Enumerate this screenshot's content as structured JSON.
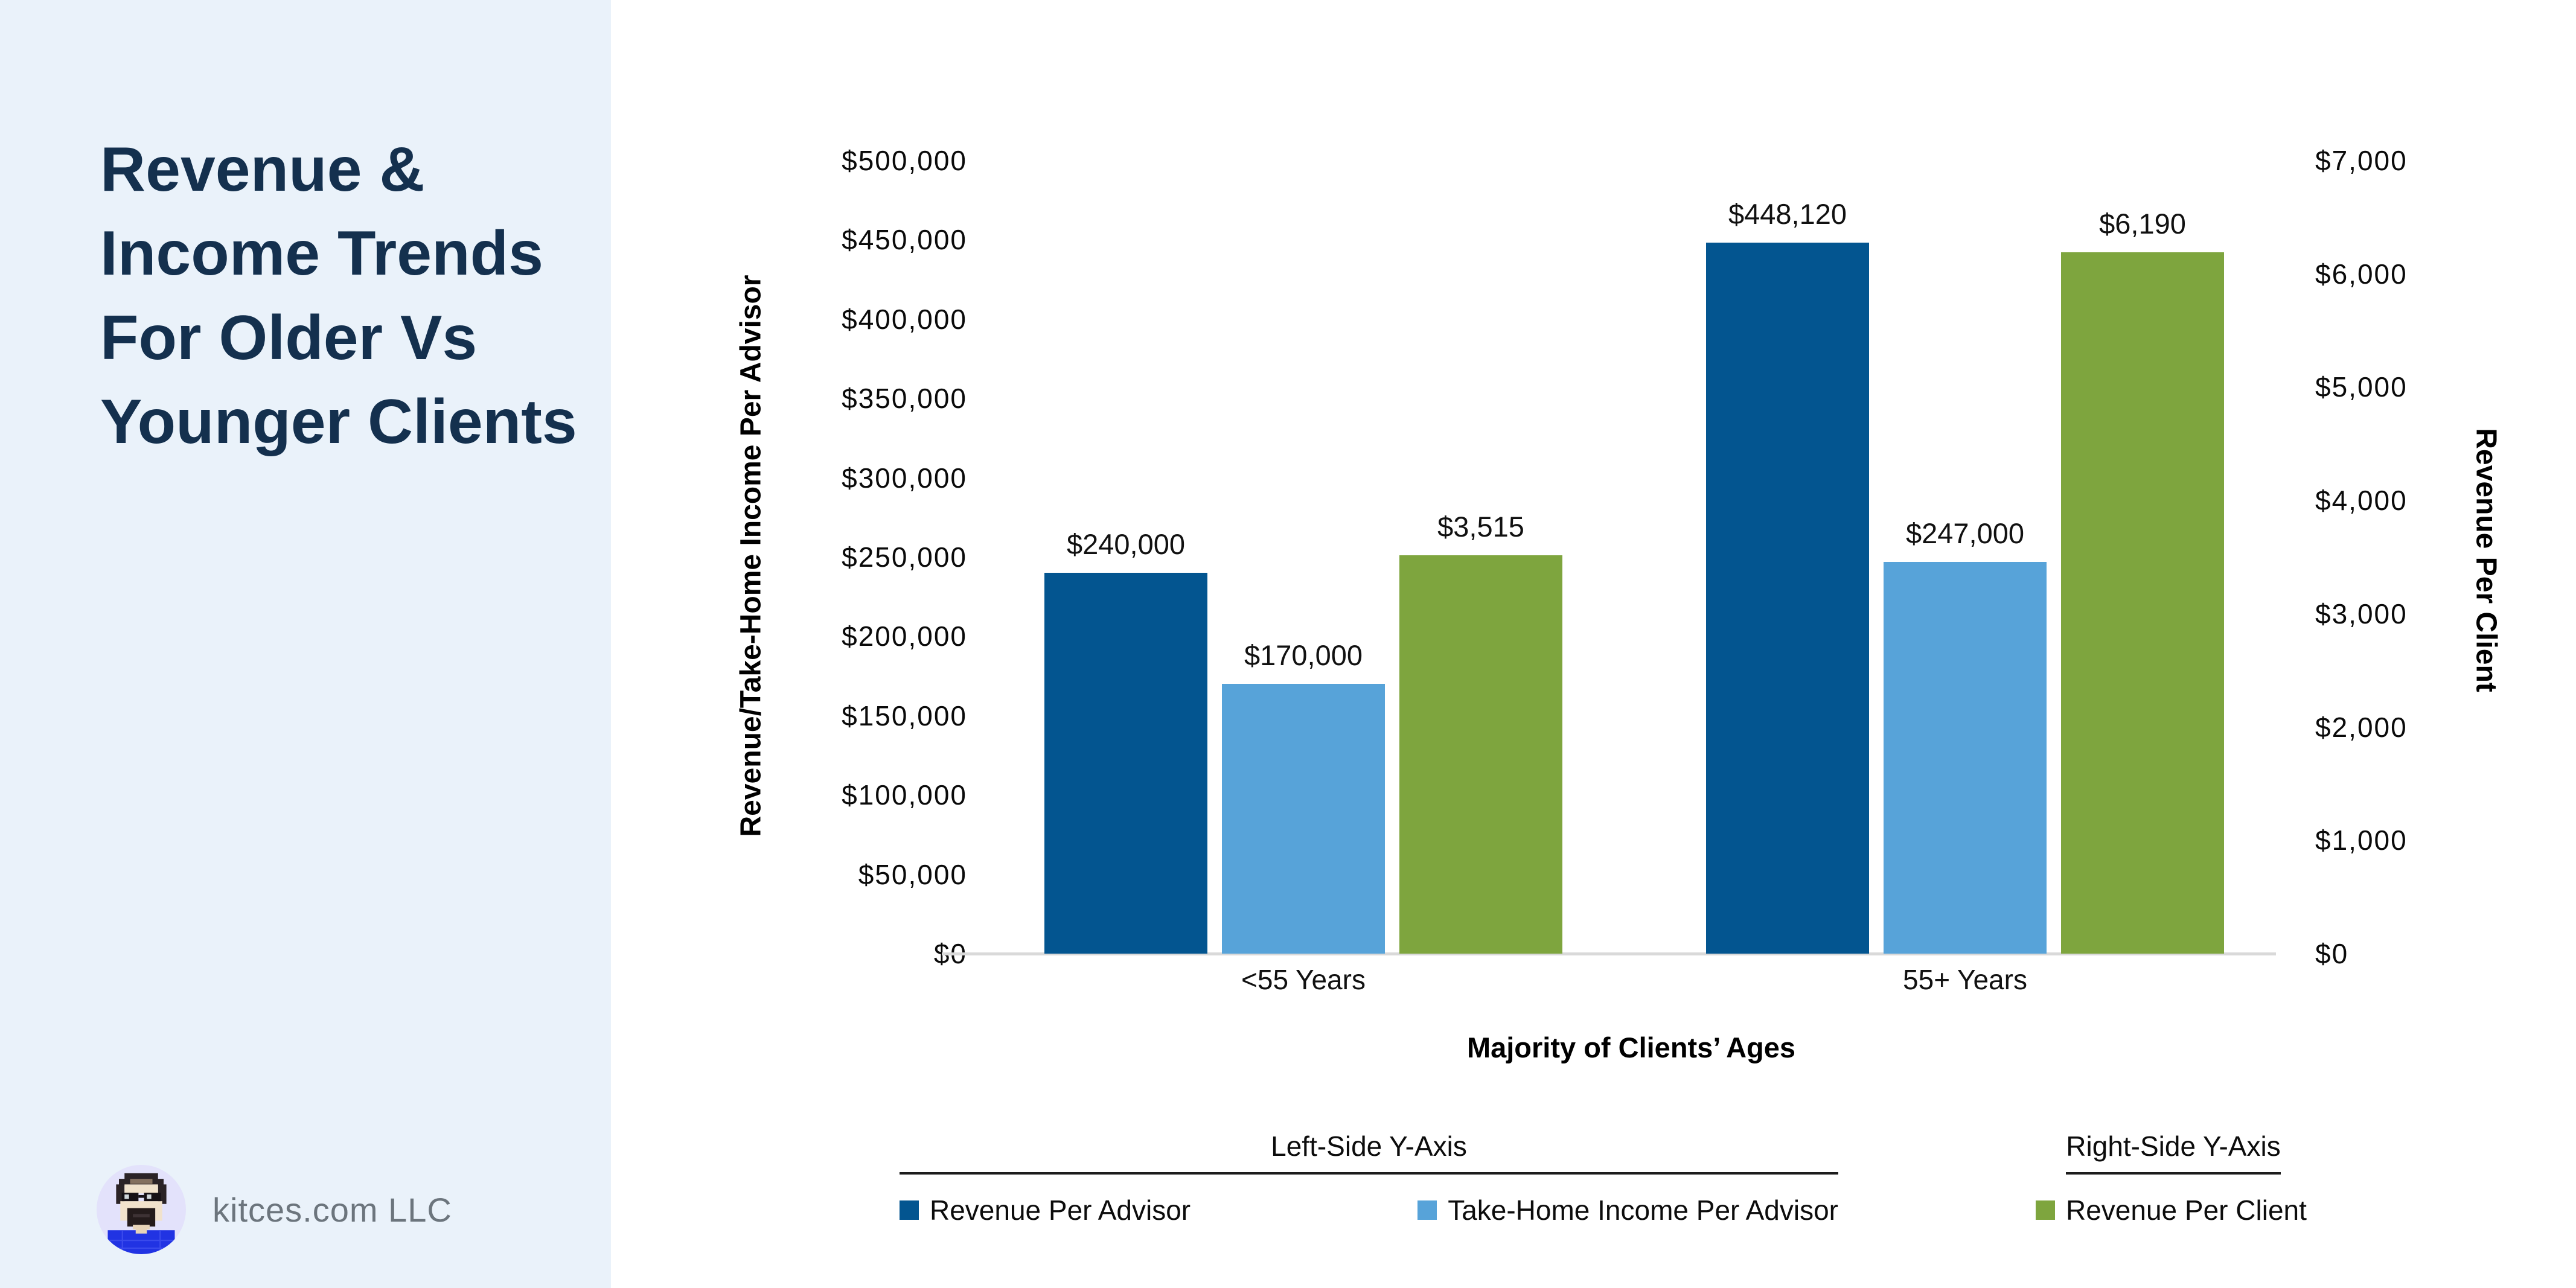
{
  "page": {
    "background": "#ffffff",
    "sidebar_background": "#eaf2fa",
    "title_color": "#14304e",
    "baseline_color": "#d9d9d9"
  },
  "sidebar": {
    "title": "Revenue & Income Trends For Older Vs Younger Clients",
    "brand": "kitces.com LLC",
    "avatar_icon": "kitces-avatar-icon"
  },
  "chart_data": {
    "type": "bar",
    "grid": false,
    "categories": [
      "<55 Years",
      "55+ Years"
    ],
    "series": [
      {
        "name": "Revenue Per Advisor",
        "axis": "left",
        "color": "#035590",
        "values": [
          240000,
          448120
        ],
        "value_labels": [
          "$240,000",
          "$448,120"
        ]
      },
      {
        "name": "Take-Home Income Per Advisor",
        "axis": "left",
        "color": "#57a3d9",
        "values": [
          170000,
          247000
        ],
        "value_labels": [
          "$170,000",
          "$247,000"
        ]
      },
      {
        "name": "Revenue Per Client",
        "axis": "right",
        "color": "#7ea53e",
        "values": [
          3515,
          6190
        ],
        "value_labels": [
          "$3,515",
          "$6,190"
        ]
      }
    ],
    "left_axis": {
      "title": "Revenue/Take-Home Income Per Advisor",
      "min": 0,
      "max": 500000,
      "step": 50000,
      "tick_labels": [
        "$0",
        "$50,000",
        "$100,000",
        "$150,000",
        "$200,000",
        "$250,000",
        "$300,000",
        "$350,000",
        "$400,000",
        "$450,000",
        "$500,000"
      ]
    },
    "right_axis": {
      "title": "Revenue Per Client",
      "min": 0,
      "max": 7000,
      "step": 1000,
      "tick_labels": [
        "$0",
        "$1,000",
        "$2,000",
        "$3,000",
        "$4,000",
        "$5,000",
        "$6,000",
        "$7,000"
      ]
    },
    "x_axis": {
      "title": "Majority of Clients’ Ages"
    },
    "legend": {
      "left_group_title": "Left-Side Y-Axis",
      "right_group_title": "Right-Side Y-Axis"
    }
  }
}
